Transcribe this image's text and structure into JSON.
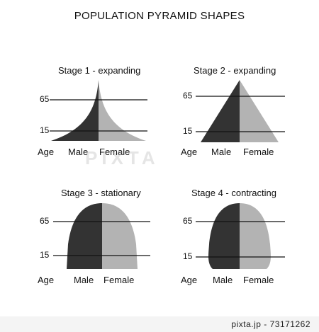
{
  "title": "POPULATION PYRAMID SHAPES",
  "panels": [
    {
      "title": "Stage 1 - expanding",
      "age_upper": "65",
      "age_lower": "15",
      "x_prefix": "Age",
      "male": "Male",
      "female": "Female",
      "shape": "expanding-concave"
    },
    {
      "title": "Stage 2 - expanding",
      "age_upper": "65",
      "age_lower": "15",
      "x_prefix": "Age",
      "male": "Male",
      "female": "Female",
      "shape": "expanding-triangle"
    },
    {
      "title": "Stage 3 - stationary",
      "age_upper": "65",
      "age_lower": "15",
      "x_prefix": "Age",
      "male": "Male",
      "female": "Female",
      "shape": "stationary-dome"
    },
    {
      "title": "Stage 4 - contracting",
      "age_upper": "65",
      "age_lower": "15",
      "x_prefix": "Age",
      "male": "Male",
      "female": "Female",
      "shape": "contracting-dome"
    }
  ],
  "colors": {
    "male": "#333333",
    "female": "#b3b3b3",
    "line": "#111111"
  },
  "watermark": "PIXTA",
  "footer": "pixta.jp - 73171262"
}
